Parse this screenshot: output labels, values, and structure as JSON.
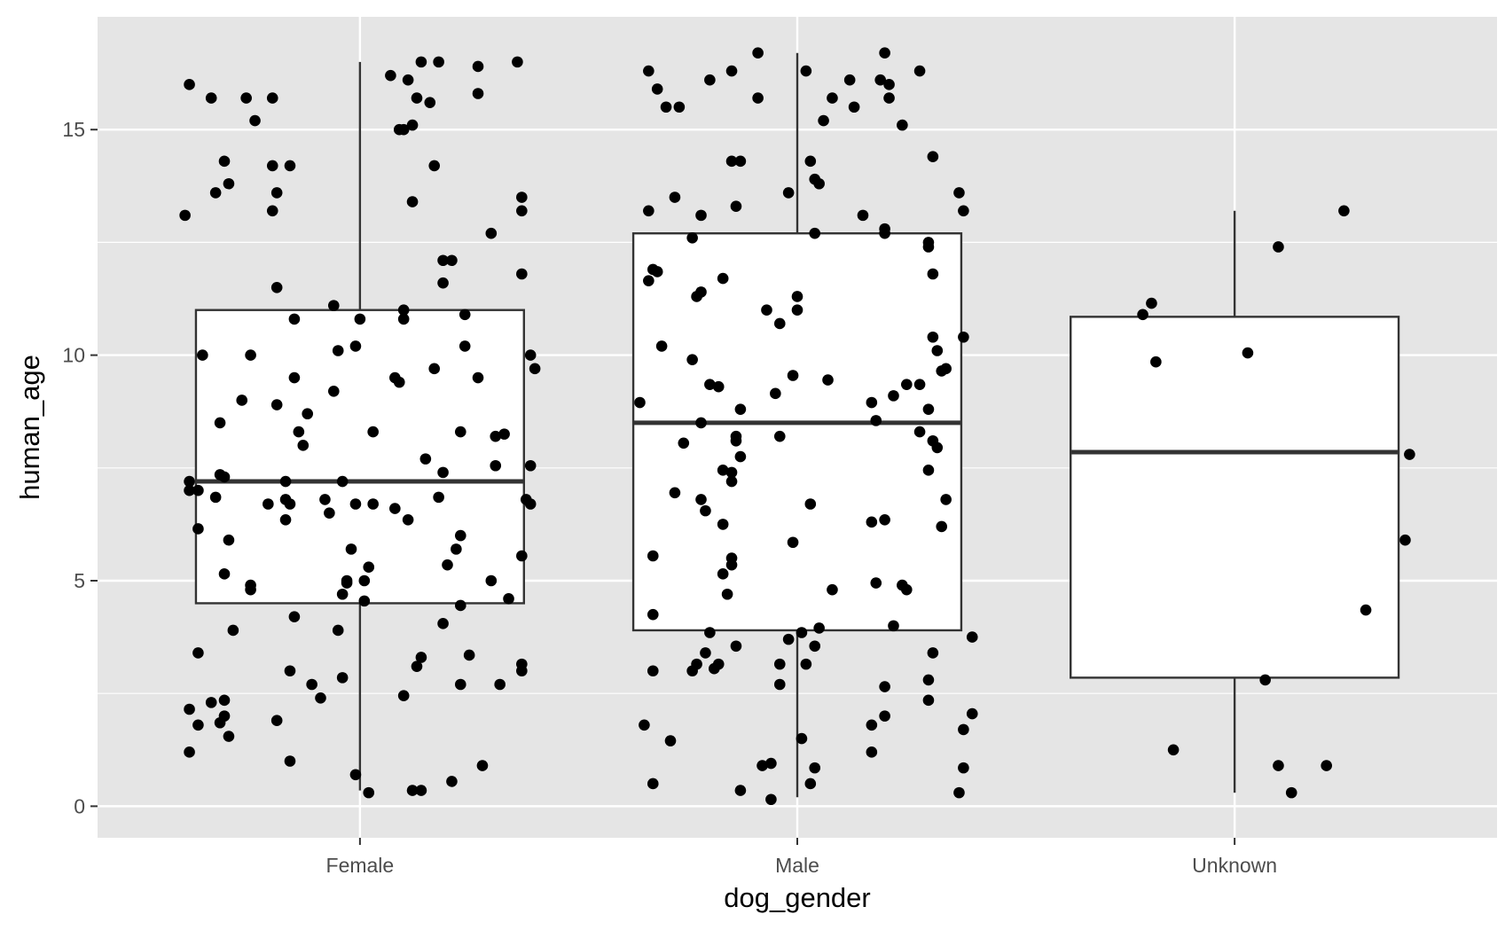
{
  "colors": {
    "panel": "#e5e5e5",
    "grid": "#ffffff",
    "box_fill": "#ffffff",
    "box_line": "#333333",
    "point": "#000000",
    "tick_text": "#4d4d4d"
  },
  "chart_data": {
    "type": "boxplot",
    "title": "",
    "xlabel": "dog_gender",
    "ylabel": "human_age",
    "categories": [
      "Female",
      "Male",
      "Unknown"
    ],
    "ylim": [
      -0.7,
      17.5
    ],
    "yticks": [
      0,
      5,
      10,
      15
    ],
    "ytick_labels": [
      "0",
      "5",
      "10",
      "15"
    ],
    "grid": true,
    "legend": "none",
    "boxes": [
      {
        "category": "Female",
        "min": 0.35,
        "q1": 4.5,
        "median": 7.2,
        "q3": 11.0,
        "max": 16.5
      },
      {
        "category": "Male",
        "min": 0.2,
        "q1": 3.9,
        "median": 8.5,
        "q3": 12.7,
        "max": 16.7
      },
      {
        "category": "Unknown",
        "min": 0.3,
        "q1": 2.85,
        "median": 7.85,
        "q3": 10.85,
        "max": 13.2
      }
    ],
    "points": [
      [
        -0.39,
        16.0
      ],
      [
        -0.34,
        15.7
      ],
      [
        -0.26,
        15.7
      ],
      [
        -0.2,
        15.7
      ],
      [
        -0.24,
        15.2
      ],
      [
        -0.31,
        14.3
      ],
      [
        -0.2,
        14.2
      ],
      [
        -0.16,
        14.2
      ],
      [
        -0.3,
        13.8
      ],
      [
        -0.33,
        13.6
      ],
      [
        -0.19,
        13.6
      ],
      [
        -0.4,
        13.1
      ],
      [
        -0.2,
        13.2
      ],
      [
        -0.19,
        11.5
      ],
      [
        -0.15,
        10.8
      ],
      [
        -0.36,
        10.0
      ],
      [
        -0.25,
        10.0
      ],
      [
        -0.15,
        9.5
      ],
      [
        -0.27,
        9.0
      ],
      [
        -0.19,
        8.9
      ],
      [
        -0.12,
        8.7
      ],
      [
        -0.32,
        8.5
      ],
      [
        -0.14,
        8.3
      ],
      [
        -0.13,
        8.0
      ],
      [
        -0.39,
        7.2
      ],
      [
        -0.32,
        7.35
      ],
      [
        -0.31,
        7.3
      ],
      [
        -0.39,
        7.0
      ],
      [
        -0.37,
        7.0
      ],
      [
        -0.17,
        7.2
      ],
      [
        -0.33,
        6.85
      ],
      [
        -0.21,
        6.7
      ],
      [
        -0.17,
        6.8
      ],
      [
        -0.16,
        6.7
      ],
      [
        -0.37,
        6.15
      ],
      [
        -0.3,
        5.9
      ],
      [
        -0.17,
        6.35
      ],
      [
        -0.31,
        5.15
      ],
      [
        -0.25,
        4.9
      ],
      [
        -0.25,
        4.8
      ],
      [
        -0.15,
        4.2
      ],
      [
        -0.29,
        3.9
      ],
      [
        -0.37,
        3.4
      ],
      [
        -0.16,
        3.0
      ],
      [
        -0.11,
        2.7
      ],
      [
        -0.09,
        2.4
      ],
      [
        -0.39,
        2.15
      ],
      [
        -0.34,
        2.3
      ],
      [
        -0.31,
        2.35
      ],
      [
        -0.31,
        2.0
      ],
      [
        -0.32,
        1.85
      ],
      [
        -0.37,
        1.8
      ],
      [
        -0.3,
        1.55
      ],
      [
        -0.19,
        1.9
      ],
      [
        -0.16,
        1.0
      ],
      [
        -0.39,
        1.2
      ],
      [
        0.07,
        16.2
      ],
      [
        0.11,
        16.1
      ],
      [
        0.14,
        16.5
      ],
      [
        0.18,
        16.5
      ],
      [
        0.27,
        16.4
      ],
      [
        0.36,
        16.5
      ],
      [
        0.13,
        15.7
      ],
      [
        0.16,
        15.6
      ],
      [
        0.27,
        15.8
      ],
      [
        0.09,
        15.0
      ],
      [
        0.1,
        15.0
      ],
      [
        0.12,
        15.1
      ],
      [
        0.17,
        14.2
      ],
      [
        0.12,
        13.4
      ],
      [
        0.37,
        13.5
      ],
      [
        0.37,
        13.2
      ],
      [
        0.3,
        12.7
      ],
      [
        0.19,
        12.1
      ],
      [
        0.21,
        12.1
      ],
      [
        0.19,
        11.6
      ],
      [
        0.37,
        11.8
      ],
      [
        -0.06,
        11.1
      ],
      [
        0.0,
        10.8
      ],
      [
        0.1,
        11.0
      ],
      [
        0.1,
        10.8
      ],
      [
        0.24,
        10.9
      ],
      [
        -0.05,
        10.1
      ],
      [
        -0.01,
        10.2
      ],
      [
        0.24,
        10.2
      ],
      [
        0.39,
        10.0
      ],
      [
        0.4,
        9.7
      ],
      [
        0.08,
        9.5
      ],
      [
        0.09,
        9.4
      ],
      [
        0.17,
        9.7
      ],
      [
        0.27,
        9.5
      ],
      [
        -0.06,
        9.2
      ],
      [
        0.03,
        8.3
      ],
      [
        0.23,
        8.3
      ],
      [
        0.31,
        8.2
      ],
      [
        0.33,
        8.25
      ],
      [
        0.15,
        7.7
      ],
      [
        0.19,
        7.4
      ],
      [
        0.31,
        7.55
      ],
      [
        0.39,
        7.55
      ],
      [
        -0.04,
        7.2
      ],
      [
        0.08,
        6.6
      ],
      [
        0.11,
        6.35
      ],
      [
        0.18,
        6.85
      ],
      [
        -0.08,
        6.8
      ],
      [
        -0.07,
        6.5
      ],
      [
        -0.01,
        6.7
      ],
      [
        0.03,
        6.7
      ],
      [
        0.23,
        6.0
      ],
      [
        0.22,
        5.7
      ],
      [
        0.38,
        6.8
      ],
      [
        0.39,
        6.7
      ],
      [
        0.37,
        5.55
      ],
      [
        -0.02,
        5.7
      ],
      [
        0.02,
        5.3
      ],
      [
        0.2,
        5.35
      ],
      [
        -0.03,
        5.0
      ],
      [
        -0.03,
        4.95
      ],
      [
        0.01,
        5.0
      ],
      [
        0.01,
        4.55
      ],
      [
        -0.04,
        4.7
      ],
      [
        0.23,
        4.45
      ],
      [
        0.34,
        4.6
      ],
      [
        0.19,
        4.05
      ],
      [
        0.3,
        5.0
      ],
      [
        -0.05,
        3.9
      ],
      [
        0.14,
        3.3
      ],
      [
        0.13,
        3.1
      ],
      [
        0.25,
        3.35
      ],
      [
        0.37,
        3.15
      ],
      [
        0.37,
        3.0
      ],
      [
        0.23,
        2.7
      ],
      [
        0.32,
        2.7
      ],
      [
        0.1,
        2.45
      ],
      [
        -0.04,
        2.85
      ],
      [
        -0.01,
        0.7
      ],
      [
        0.02,
        0.3
      ],
      [
        0.12,
        0.35
      ],
      [
        0.14,
        0.35
      ],
      [
        0.21,
        0.55
      ],
      [
        0.28,
        0.9
      ],
      [
        0.66,
        16.3
      ],
      [
        0.68,
        15.9
      ],
      [
        0.7,
        15.5
      ],
      [
        0.73,
        15.5
      ],
      [
        0.8,
        16.1
      ],
      [
        0.85,
        16.3
      ],
      [
        0.91,
        16.7
      ],
      [
        1.02,
        16.3
      ],
      [
        0.91,
        15.7
      ],
      [
        1.08,
        15.7
      ],
      [
        1.06,
        15.2
      ],
      [
        1.12,
        16.1
      ],
      [
        1.13,
        15.5
      ],
      [
        1.19,
        16.1
      ],
      [
        1.2,
        16.7
      ],
      [
        1.21,
        15.7
      ],
      [
        1.21,
        16.0
      ],
      [
        1.24,
        15.1
      ],
      [
        1.28,
        16.3
      ],
      [
        0.85,
        14.3
      ],
      [
        0.87,
        14.3
      ],
      [
        1.03,
        14.3
      ],
      [
        1.04,
        13.9
      ],
      [
        1.05,
        13.8
      ],
      [
        0.98,
        13.6
      ],
      [
        0.72,
        13.5
      ],
      [
        0.66,
        13.2
      ],
      [
        0.78,
        13.1
      ],
      [
        0.86,
        13.3
      ],
      [
        1.15,
        13.1
      ],
      [
        1.31,
        14.4
      ],
      [
        1.37,
        13.6
      ],
      [
        1.38,
        13.2
      ],
      [
        1.2,
        12.8
      ],
      [
        1.2,
        12.7
      ],
      [
        1.3,
        12.5
      ],
      [
        1.3,
        12.4
      ],
      [
        1.04,
        12.7
      ],
      [
        0.76,
        12.6
      ],
      [
        1.31,
        11.8
      ],
      [
        0.66,
        11.65
      ],
      [
        0.67,
        11.9
      ],
      [
        0.68,
        11.85
      ],
      [
        0.77,
        11.3
      ],
      [
        0.78,
        11.4
      ],
      [
        0.83,
        11.7
      ],
      [
        0.93,
        11.0
      ],
      [
        0.96,
        10.7
      ],
      [
        1.0,
        11.3
      ],
      [
        1.0,
        11.0
      ],
      [
        1.31,
        10.4
      ],
      [
        1.32,
        10.1
      ],
      [
        1.38,
        10.4
      ],
      [
        0.69,
        10.2
      ],
      [
        0.76,
        9.9
      ],
      [
        1.33,
        9.65
      ],
      [
        1.34,
        9.7
      ],
      [
        0.64,
        8.95
      ],
      [
        0.8,
        9.35
      ],
      [
        0.82,
        9.3
      ],
      [
        0.99,
        9.55
      ],
      [
        0.95,
        9.15
      ],
      [
        1.07,
        9.45
      ],
      [
        1.17,
        8.95
      ],
      [
        1.18,
        8.55
      ],
      [
        1.22,
        9.1
      ],
      [
        1.25,
        9.35
      ],
      [
        1.28,
        9.35
      ],
      [
        1.3,
        8.8
      ],
      [
        0.78,
        8.5
      ],
      [
        0.87,
        8.8
      ],
      [
        0.86,
        8.2
      ],
      [
        0.86,
        8.1
      ],
      [
        0.96,
        8.2
      ],
      [
        1.28,
        8.3
      ],
      [
        1.31,
        8.1
      ],
      [
        0.74,
        8.05
      ],
      [
        0.87,
        7.75
      ],
      [
        0.85,
        7.4
      ],
      [
        0.83,
        7.45
      ],
      [
        0.85,
        7.2
      ],
      [
        1.32,
        7.95
      ],
      [
        1.3,
        7.45
      ],
      [
        0.72,
        6.95
      ],
      [
        0.78,
        6.8
      ],
      [
        0.79,
        6.55
      ],
      [
        0.83,
        6.25
      ],
      [
        1.03,
        6.7
      ],
      [
        1.17,
        6.3
      ],
      [
        1.2,
        6.35
      ],
      [
        1.34,
        6.8
      ],
      [
        1.33,
        6.2
      ],
      [
        0.99,
        5.85
      ],
      [
        0.67,
        5.55
      ],
      [
        0.85,
        5.5
      ],
      [
        0.85,
        5.35
      ],
      [
        0.83,
        5.15
      ],
      [
        0.84,
        4.7
      ],
      [
        1.08,
        4.8
      ],
      [
        1.18,
        4.95
      ],
      [
        1.24,
        4.9
      ],
      [
        1.25,
        4.8
      ],
      [
        0.67,
        4.25
      ],
      [
        0.8,
        3.85
      ],
      [
        0.98,
        3.7
      ],
      [
        1.01,
        3.85
      ],
      [
        1.05,
        3.95
      ],
      [
        1.22,
        4.0
      ],
      [
        0.79,
        3.4
      ],
      [
        0.77,
        3.15
      ],
      [
        0.76,
        3.0
      ],
      [
        0.82,
        3.15
      ],
      [
        0.81,
        3.05
      ],
      [
        0.86,
        3.55
      ],
      [
        0.96,
        3.15
      ],
      [
        1.02,
        3.15
      ],
      [
        1.04,
        3.55
      ],
      [
        1.31,
        3.4
      ],
      [
        1.4,
        3.75
      ],
      [
        0.67,
        3.0
      ],
      [
        0.96,
        2.7
      ],
      [
        1.2,
        2.65
      ],
      [
        1.3,
        2.8
      ],
      [
        1.3,
        2.35
      ],
      [
        1.2,
        2.0
      ],
      [
        1.4,
        2.05
      ],
      [
        0.65,
        1.8
      ],
      [
        1.17,
        1.8
      ],
      [
        1.38,
        1.7
      ],
      [
        1.01,
        1.5
      ],
      [
        0.71,
        1.45
      ],
      [
        1.17,
        1.2
      ],
      [
        0.92,
        0.9
      ],
      [
        0.94,
        0.95
      ],
      [
        1.04,
        0.85
      ],
      [
        1.38,
        0.85
      ],
      [
        0.67,
        0.5
      ],
      [
        1.03,
        0.5
      ],
      [
        0.87,
        0.35
      ],
      [
        0.94,
        0.15
      ],
      [
        1.37,
        0.3
      ],
      [
        1.79,
        10.9
      ],
      [
        1.81,
        11.15
      ],
      [
        1.82,
        9.85
      ],
      [
        2.03,
        10.05
      ],
      [
        2.1,
        12.4
      ],
      [
        2.25,
        13.2
      ],
      [
        2.4,
        7.8
      ],
      [
        2.39,
        5.9
      ],
      [
        2.3,
        4.35
      ],
      [
        2.07,
        2.8
      ],
      [
        1.86,
        1.25
      ],
      [
        2.1,
        0.9
      ],
      [
        2.21,
        0.9
      ],
      [
        2.13,
        0.3
      ]
    ]
  }
}
